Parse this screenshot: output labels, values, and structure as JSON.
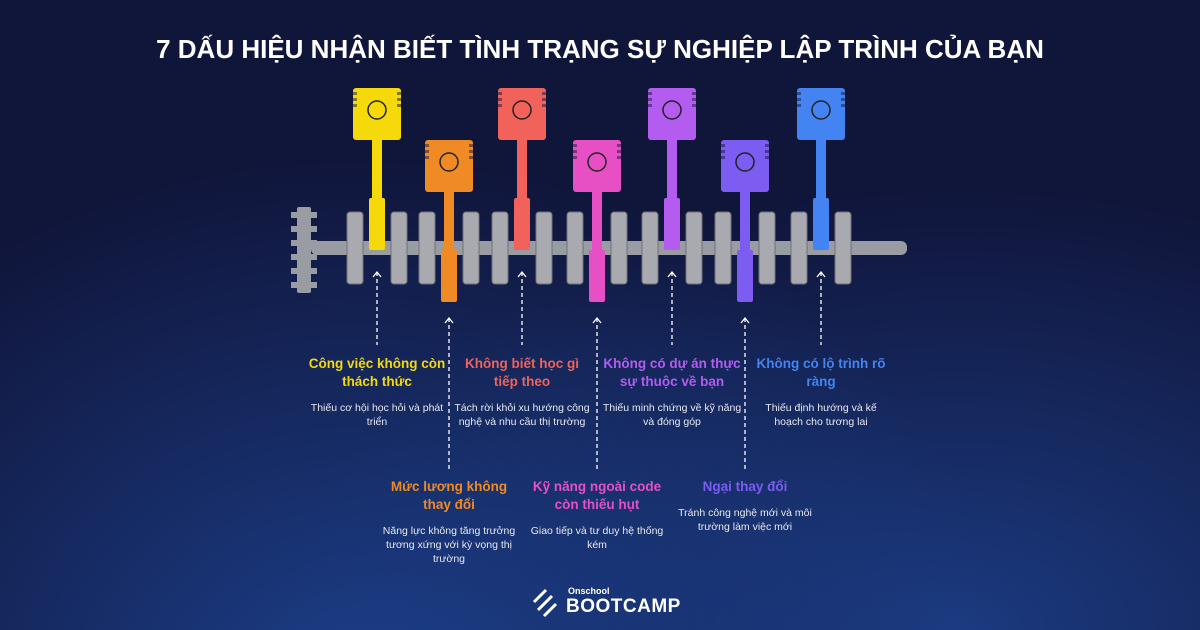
{
  "title": "7 DẤU HIỆU NHẬN BIẾT TÌNH TRẠNG SỰ NGHIỆP LẬP TRÌNH CỦA BẠN",
  "items": [
    {
      "label": "Công việc không còn thách thức",
      "description": "Thiếu cơ hội học hỏi và phát triển",
      "color": "#f5d90a"
    },
    {
      "label": "Mức lương không thay đổi",
      "description": "Năng lực không tăng trưởng tương xứng với kỳ vọng thị trường",
      "color": "#f08a24"
    },
    {
      "label": "Không biết học gì tiếp theo",
      "description": "Tách rời khỏi xu hướng công nghệ và nhu cầu thị trường",
      "color": "#f0625a"
    },
    {
      "label": "Kỹ năng ngoài code còn thiếu hụt",
      "description": "Giao tiếp và tư duy hệ thống kém",
      "color": "#e650c4"
    },
    {
      "label": "Không có dự án thực sự thuộc về bạn",
      "description": "Thiếu minh chứng về kỹ năng và đóng góp",
      "color": "#b45cf0"
    },
    {
      "label": "Ngại thay đổi",
      "description": "Tránh công nghệ mới và môi trường làm việc mới",
      "color": "#7d5cf2"
    },
    {
      "label": "Không có lộ trình rõ ràng",
      "description": "Thiếu định hướng và kế hoạch cho tương lai",
      "color": "#4384f2"
    }
  ],
  "logo": {
    "small": "Onschool",
    "big": "BOOTCAMP"
  }
}
